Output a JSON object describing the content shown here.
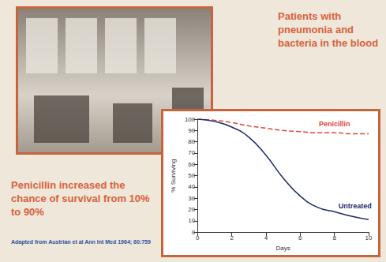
{
  "title": "Patients with pneumonia and bacteria in the blood",
  "caption": "Penicillin increased the chance of survival from 10% to 90%",
  "source": "Adapted from Austrian et al Ann Int Med 1964; 60:759",
  "chart_data": {
    "type": "line",
    "x": [
      0,
      1,
      2,
      3,
      4,
      5,
      6,
      7,
      8,
      9,
      10
    ],
    "xlabel": "Days",
    "ylabel": "% Surviving",
    "xlim": [
      0,
      10
    ],
    "xticks": [
      0,
      2,
      4,
      6,
      8,
      10
    ],
    "ylim": [
      0,
      100
    ],
    "yticks": [
      0,
      10,
      20,
      30,
      40,
      50,
      60,
      70,
      80,
      90,
      100
    ],
    "grid": false,
    "series": [
      {
        "name": "Penicillin",
        "color": "#e0453a",
        "line_style": "dashed",
        "marker": "none",
        "values": [
          100,
          99,
          97,
          94,
          92,
          90,
          89,
          88,
          88,
          87,
          87
        ]
      },
      {
        "name": "Untreated",
        "color": "#1f2a6b",
        "line_style": "solid",
        "marker": "none",
        "values": [
          100,
          98,
          93,
          84,
          68,
          48,
          32,
          22,
          18,
          14,
          11
        ]
      }
    ]
  }
}
